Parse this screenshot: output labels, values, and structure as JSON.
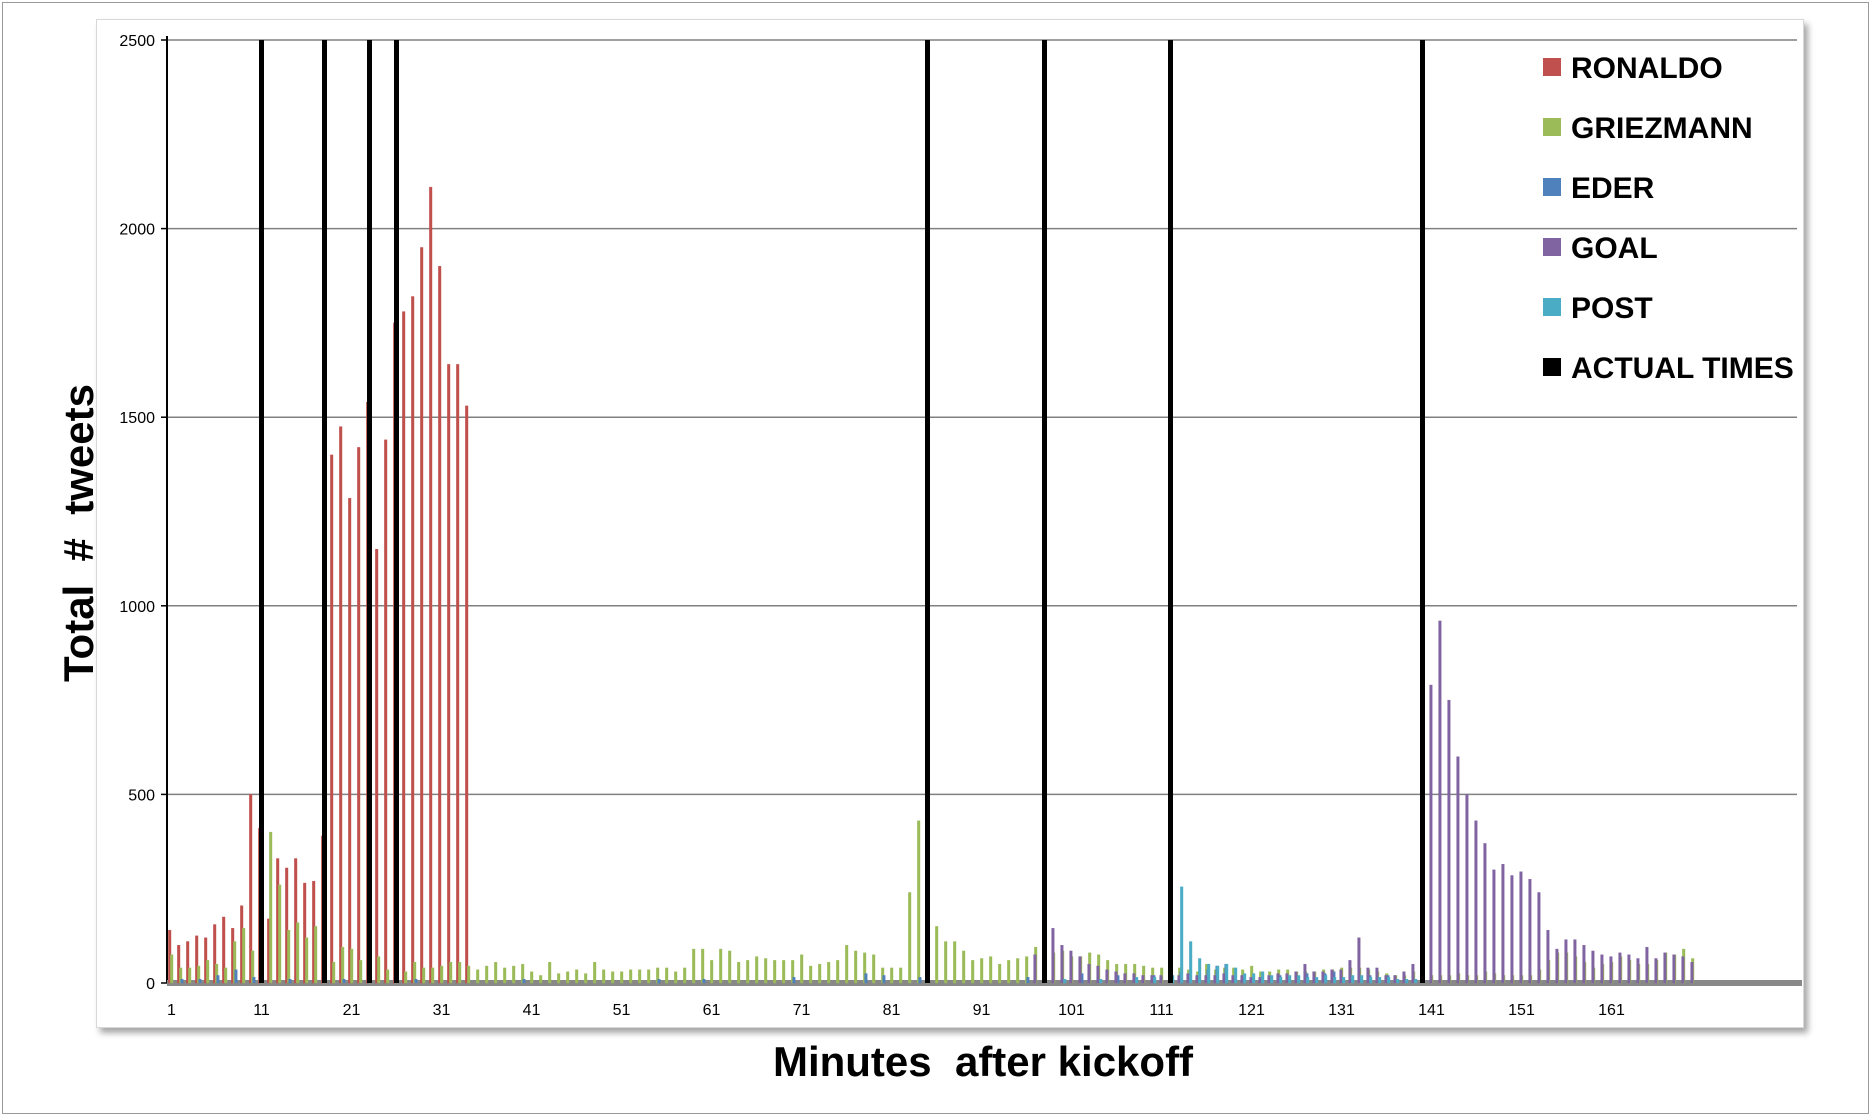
{
  "chart_data": {
    "type": "bar",
    "xlabel": "Minutes  after kickoff",
    "ylabel": "Total  #  tweets",
    "ylim": [
      0,
      2500
    ],
    "y_ticks": [
      0,
      500,
      1000,
      1500,
      2000,
      2500
    ],
    "x_range": [
      1,
      170
    ],
    "x_tick_labels": [
      1,
      11,
      21,
      31,
      41,
      51,
      61,
      71,
      81,
      91,
      101,
      111,
      121,
      131,
      141,
      151,
      161
    ],
    "grid": "horizontal",
    "legend_position": "top-right",
    "colors": {
      "RONALDO": "#c0504d",
      "GRIEZMANN": "#9bbb59",
      "EDER": "#4f81bd",
      "GOAL": "#8064a2",
      "POST": "#4bacc6",
      "ACTUAL TIMES": "#000000",
      "gridline": "#808080"
    },
    "series": [
      {
        "name": "RONALDO",
        "x": [
          1,
          2,
          3,
          4,
          5,
          6,
          7,
          8,
          9,
          10,
          11,
          12,
          13,
          14,
          15,
          16,
          17,
          18,
          19,
          20,
          21,
          22,
          23,
          24,
          25,
          26,
          27,
          28,
          29,
          30,
          31,
          32,
          33,
          34
        ],
        "values": [
          140,
          100,
          110,
          125,
          120,
          155,
          175,
          145,
          205,
          500,
          410,
          170,
          330,
          305,
          330,
          265,
          270,
          390,
          1400,
          1475,
          1285,
          1420,
          1540,
          1150,
          1440,
          1750,
          1780,
          1820,
          1950,
          2110,
          1900,
          1640,
          1640,
          1530
        ]
      },
      {
        "name": "GRIEZMANN",
        "x": [
          1,
          2,
          3,
          4,
          5,
          6,
          7,
          8,
          9,
          10,
          11,
          12,
          13,
          14,
          15,
          16,
          17,
          18,
          19,
          20,
          21,
          22,
          23,
          24,
          25,
          26,
          27,
          28,
          29,
          30,
          31,
          32,
          33,
          34,
          35,
          36,
          37,
          38,
          39,
          40,
          41,
          42,
          43,
          44,
          45,
          46,
          47,
          48,
          49,
          50,
          51,
          52,
          53,
          54,
          55,
          56,
          57,
          58,
          59,
          60,
          61,
          62,
          63,
          64,
          65,
          66,
          67,
          68,
          69,
          70,
          71,
          72,
          73,
          74,
          75,
          76,
          77,
          78,
          79,
          80,
          81,
          82,
          83,
          84,
          85,
          86,
          87,
          88,
          89,
          90,
          91,
          92,
          93,
          94,
          95,
          96,
          97,
          98,
          99,
          100,
          101,
          102,
          103,
          104,
          105,
          106,
          107,
          108,
          109,
          110,
          111,
          112,
          113,
          114,
          115,
          116,
          117,
          118,
          119,
          120,
          121,
          122,
          123,
          124,
          125,
          126,
          127,
          128,
          129,
          130,
          131,
          132,
          133,
          134,
          135,
          136,
          137,
          138,
          139,
          140,
          141,
          142,
          143,
          144,
          145,
          146,
          147,
          148,
          149,
          150,
          151,
          152,
          153,
          154,
          155,
          156,
          157,
          158,
          159,
          160,
          161,
          162,
          163,
          164,
          165,
          166,
          167,
          168,
          169,
          170
        ],
        "values": [
          75,
          40,
          40,
          45,
          60,
          50,
          40,
          110,
          145,
          85,
          160,
          400,
          260,
          140,
          160,
          120,
          150,
          55,
          55,
          95,
          90,
          60,
          95,
          70,
          35,
          40,
          30,
          55,
          40,
          40,
          45,
          55,
          55,
          45,
          35,
          45,
          55,
          40,
          45,
          50,
          30,
          20,
          55,
          25,
          30,
          35,
          25,
          55,
          35,
          30,
          30,
          35,
          35,
          35,
          40,
          40,
          30,
          40,
          90,
          90,
          60,
          90,
          85,
          55,
          60,
          70,
          65,
          60,
          60,
          60,
          75,
          45,
          50,
          55,
          60,
          100,
          85,
          80,
          75,
          40,
          40,
          40,
          240,
          430,
          225,
          150,
          110,
          110,
          85,
          60,
          65,
          70,
          50,
          60,
          65,
          70,
          95,
          80,
          80,
          85,
          70,
          70,
          80,
          75,
          60,
          50,
          50,
          50,
          45,
          40,
          40,
          35,
          40,
          35,
          30,
          50,
          35,
          40,
          40,
          35,
          45,
          30,
          30,
          35,
          35,
          30,
          30,
          30,
          35,
          35,
          40,
          40,
          40,
          35,
          30,
          25,
          20,
          20,
          30,
          30,
          20,
          20,
          20,
          25,
          20,
          20,
          30,
          25,
          20,
          20,
          20,
          20,
          35,
          60,
          80,
          80,
          70,
          55,
          40,
          50,
          55,
          70,
          60,
          50,
          50,
          60,
          80,
          75,
          90,
          65
        ]
      },
      {
        "name": "EDER",
        "x": [
          2,
          4,
          6,
          8,
          10,
          14,
          20,
          28,
          40,
          55,
          60,
          70,
          78,
          80,
          84,
          96,
          102,
          106,
          110,
          113,
          114,
          116,
          117,
          118,
          120,
          124,
          127,
          129,
          130,
          134,
          136
        ],
        "values": [
          10,
          10,
          20,
          35,
          15,
          10,
          10,
          10,
          10,
          10,
          10,
          15,
          25,
          20,
          15,
          15,
          25,
          20,
          20,
          30,
          25,
          35,
          45,
          50,
          20,
          20,
          25,
          25,
          30,
          20,
          20
        ]
      },
      {
        "name": "GOAL",
        "x": [
          97,
          98,
          99,
          100,
          101,
          102,
          103,
          104,
          105,
          106,
          107,
          108,
          109,
          110,
          111,
          112,
          113,
          114,
          115,
          116,
          117,
          118,
          119,
          120,
          121,
          122,
          123,
          124,
          125,
          126,
          127,
          128,
          129,
          130,
          131,
          132,
          133,
          134,
          135,
          136,
          137,
          138,
          139,
          140,
          141,
          142,
          143,
          144,
          145,
          146,
          147,
          148,
          149,
          150,
          151,
          152,
          153,
          154,
          155,
          156,
          157,
          158,
          159,
          160,
          161,
          162,
          163,
          164,
          165,
          166,
          167,
          168,
          169,
          170
        ],
        "values": [
          75,
          185,
          145,
          100,
          85,
          70,
          50,
          45,
          35,
          30,
          25,
          25,
          20,
          20,
          20,
          30,
          20,
          25,
          20,
          20,
          20,
          25,
          20,
          20,
          15,
          15,
          20,
          25,
          25,
          30,
          50,
          30,
          30,
          35,
          35,
          60,
          120,
          40,
          40,
          20,
          20,
          30,
          50,
          170,
          790,
          960,
          750,
          600,
          500,
          430,
          370,
          300,
          315,
          285,
          295,
          275,
          240,
          140,
          90,
          115,
          115,
          100,
          85,
          75,
          70,
          80,
          75,
          65,
          95,
          65,
          80,
          75,
          70,
          55
        ]
      },
      {
        "name": "POST",
        "x": [
          100,
          104,
          108,
          110,
          112,
          113,
          114,
          115,
          116,
          117,
          118,
          119,
          120,
          121,
          122,
          123,
          124,
          125,
          126,
          127,
          128,
          129,
          130,
          131,
          132,
          133,
          134,
          135,
          136,
          137,
          138,
          139
        ],
        "values": [
          10,
          10,
          15,
          15,
          20,
          255,
          110,
          65,
          50,
          45,
          50,
          40,
          25,
          25,
          30,
          20,
          15,
          20,
          20,
          15,
          15,
          20,
          15,
          15,
          20,
          20,
          15,
          15,
          15,
          10,
          10,
          10
        ]
      },
      {
        "name": "ACTUAL TIMES",
        "x": [
          11,
          18,
          23,
          26,
          85,
          98,
          112,
          140
        ],
        "values": [
          2500,
          2500,
          2500,
          2500,
          2500,
          2500,
          2500,
          2500
        ]
      }
    ]
  }
}
